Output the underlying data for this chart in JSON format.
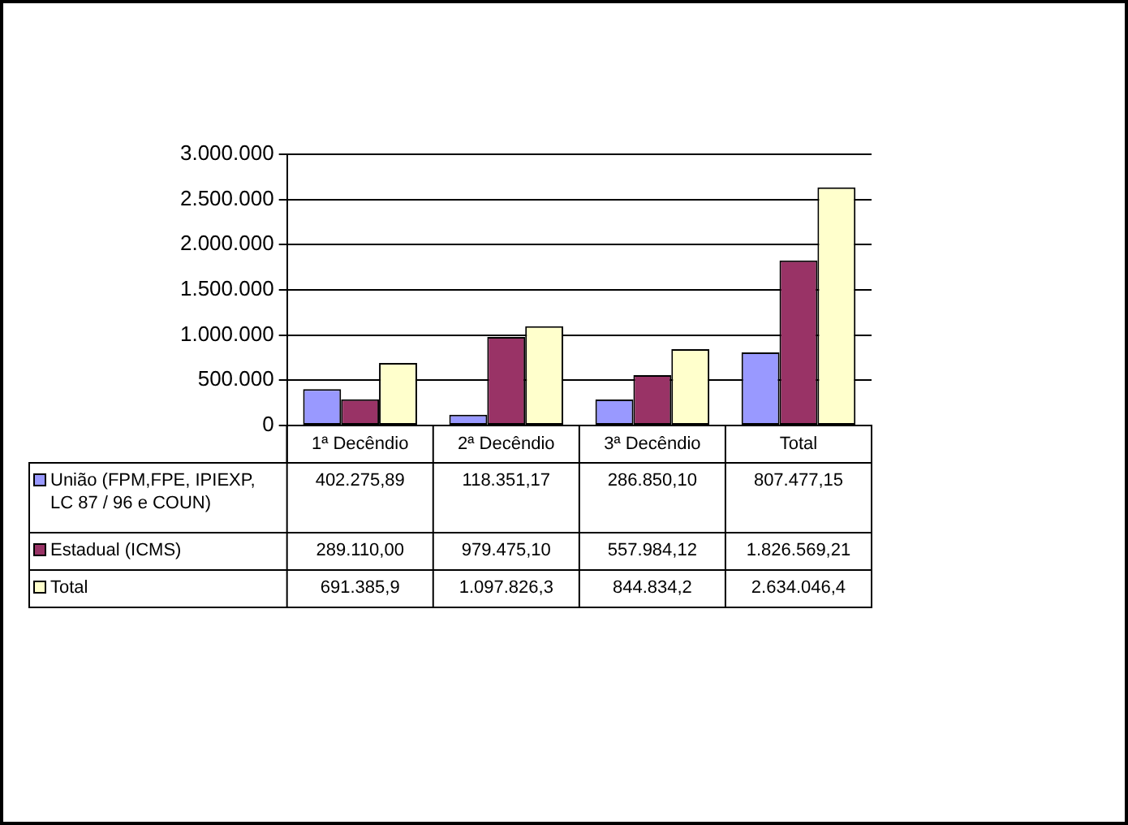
{
  "chart_data": {
    "type": "bar",
    "categories": [
      "1ª Decêndio",
      "2ª Decêndio",
      "3ª Decêndio",
      "Total"
    ],
    "series": [
      {
        "name": "União (FPM,FPE, IPIEXP, LC 87 / 96 e COUN)",
        "color": "#9999ff",
        "values": [
          402275.89,
          118351.17,
          286850.1,
          807477.15
        ],
        "value_labels": [
          "402.275,89",
          "118.351,17",
          "286.850,10",
          "807.477,15"
        ]
      },
      {
        "name": "Estadual (ICMS)",
        "color": "#993366",
        "values": [
          289110.0,
          979475.1,
          557984.12,
          1826569.21
        ],
        "value_labels": [
          "289.110,00",
          "979.475,10",
          "557.984,12",
          "1.826.569,21"
        ]
      },
      {
        "name": "Total",
        "color": "#ffffcc",
        "values": [
          691385.9,
          1097826.3,
          844834.2,
          2634046.4
        ],
        "value_labels": [
          "691.385,9",
          "1.097.826,3",
          "844.834,2",
          "2.634.046,4"
        ]
      }
    ],
    "ylim": [
      0,
      3000000
    ],
    "yticks": [
      {
        "value": 0,
        "label": "0"
      },
      {
        "value": 500000,
        "label": "500.000"
      },
      {
        "value": 1000000,
        "label": "1.000.000"
      },
      {
        "value": 1500000,
        "label": "1.500.000"
      },
      {
        "value": 2000000,
        "label": "2.000.000"
      },
      {
        "value": 2500000,
        "label": "2.500.000"
      },
      {
        "value": 3000000,
        "label": "3.000.000"
      }
    ],
    "grid": "y",
    "legend": "bottom"
  }
}
